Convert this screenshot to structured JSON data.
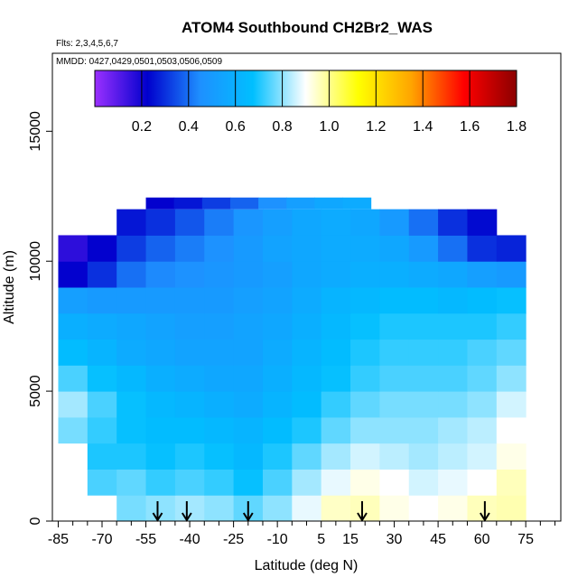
{
  "chart_data": {
    "type": "heatmap",
    "title": "ATOM4 Southbound CH2Br2_WAS",
    "annotations": [
      "Flts: 2,3,4,5,6,7",
      "MMDD: 0427,0429,0501,0503,0506,0509"
    ],
    "xlabel": "Latitude (deg N)",
    "ylabel": "Altitude (m)",
    "xlim": [
      -87,
      87
    ],
    "ylim": [
      0,
      18000
    ],
    "x_tick_labels": [
      "-85",
      "-70",
      "-55",
      "-40",
      "-25",
      "-10",
      "5",
      "15",
      "30",
      "45",
      "60",
      "75"
    ],
    "x_tick_values": [
      -85,
      -70,
      -55,
      -40,
      -25,
      -10,
      5,
      15,
      30,
      45,
      60,
      75
    ],
    "x_minor_ticks": [
      -80,
      -75,
      -65,
      -60,
      -50,
      -45,
      -35,
      -30,
      -20,
      -15,
      -5,
      0,
      10,
      20,
      25,
      35,
      40,
      50,
      55,
      65,
      70,
      80,
      85
    ],
    "y_tick_labels": [
      "0",
      "5000",
      "10000",
      "15000"
    ],
    "y_tick_values": [
      0,
      5000,
      10000,
      15000
    ],
    "colorbar": {
      "min": 0.0,
      "max": 1.8,
      "tick_labels": [
        "0.2",
        "0.4",
        "0.6",
        "0.8",
        "1.0",
        "1.2",
        "1.4",
        "1.6",
        "1.8"
      ],
      "tick_values": [
        0.2,
        0.4,
        0.6,
        0.8,
        1.0,
        1.2,
        1.4,
        1.6,
        1.8
      ],
      "colors": [
        "#9b30ff",
        "#0000cd",
        "#1e90ff",
        "#00bfff",
        "#ffffff",
        "#ffff00",
        "#ffa500",
        "#ff0000",
        "#8b0000"
      ]
    },
    "profile_arrows_latitude": [
      -51,
      -41,
      -20,
      19,
      61
    ],
    "lat_bins": [
      -85,
      -75,
      -65,
      -55,
      -45,
      -35,
      -25,
      -15,
      -5,
      5,
      15,
      25,
      35,
      45,
      55,
      65
    ],
    "alt_bins": [
      0,
      1000,
      2000,
      3000,
      4000,
      5000,
      6000,
      7000,
      8000,
      9000,
      10000,
      11000,
      12000
    ],
    "values": [
      [
        null,
        null,
        0.78,
        0.8,
        0.82,
        0.8,
        0.76,
        0.8,
        0.88,
        0.95,
        0.96,
        0.92,
        0.9,
        0.92,
        0.96,
        0.97
      ],
      [
        null,
        0.74,
        0.76,
        0.72,
        0.74,
        0.72,
        0.68,
        0.74,
        0.82,
        0.88,
        0.92,
        0.9,
        0.86,
        0.88,
        0.9,
        0.96
      ],
      [
        null,
        0.7,
        0.7,
        0.68,
        0.7,
        0.68,
        0.64,
        0.7,
        0.76,
        0.82,
        0.86,
        0.84,
        0.82,
        0.84,
        0.86,
        0.92
      ],
      [
        0.78,
        0.72,
        0.68,
        0.66,
        0.66,
        0.64,
        0.62,
        0.66,
        0.7,
        0.76,
        0.8,
        0.8,
        0.8,
        0.82,
        0.84,
        0.9
      ],
      [
        0.82,
        0.74,
        0.68,
        0.64,
        0.62,
        0.6,
        0.58,
        0.62,
        0.66,
        0.72,
        0.76,
        0.78,
        0.78,
        0.78,
        0.8,
        0.86
      ],
      [
        0.74,
        0.68,
        0.64,
        0.6,
        0.58,
        0.56,
        0.56,
        0.6,
        0.64,
        0.68,
        0.72,
        0.74,
        0.74,
        0.74,
        0.76,
        0.8
      ],
      [
        0.66,
        0.62,
        0.58,
        0.56,
        0.54,
        0.54,
        0.54,
        0.58,
        0.62,
        0.66,
        0.7,
        0.72,
        0.72,
        0.72,
        0.74,
        0.76
      ],
      [
        0.6,
        0.58,
        0.56,
        0.54,
        0.52,
        0.52,
        0.54,
        0.56,
        0.6,
        0.64,
        0.68,
        0.7,
        0.7,
        0.7,
        0.7,
        0.72
      ],
      [
        0.52,
        0.5,
        0.5,
        0.5,
        0.5,
        0.5,
        0.52,
        0.54,
        0.58,
        0.62,
        0.64,
        0.66,
        0.66,
        0.64,
        0.66,
        0.68
      ],
      [
        0.22,
        0.3,
        0.4,
        0.44,
        0.46,
        0.48,
        0.5,
        0.52,
        0.56,
        0.58,
        0.6,
        0.6,
        0.58,
        0.56,
        0.52,
        0.5
      ],
      [
        0.16,
        0.22,
        0.32,
        0.38,
        0.42,
        0.46,
        0.5,
        0.54,
        0.56,
        0.58,
        0.58,
        0.56,
        0.5,
        0.4,
        0.3,
        0.28
      ],
      [
        null,
        null,
        0.26,
        0.3,
        0.36,
        0.42,
        0.48,
        0.52,
        0.56,
        0.58,
        0.56,
        0.5,
        0.4,
        0.3,
        0.24,
        null
      ]
    ],
    "top_band": {
      "alt": 12000,
      "height": 450,
      "lat_start": -55,
      "lat_end": 22,
      "values": [
        0.22,
        0.26,
        0.32,
        0.38,
        0.46,
        0.52,
        0.56,
        0.58
      ]
    },
    "grid": false,
    "legend_position": "top"
  }
}
